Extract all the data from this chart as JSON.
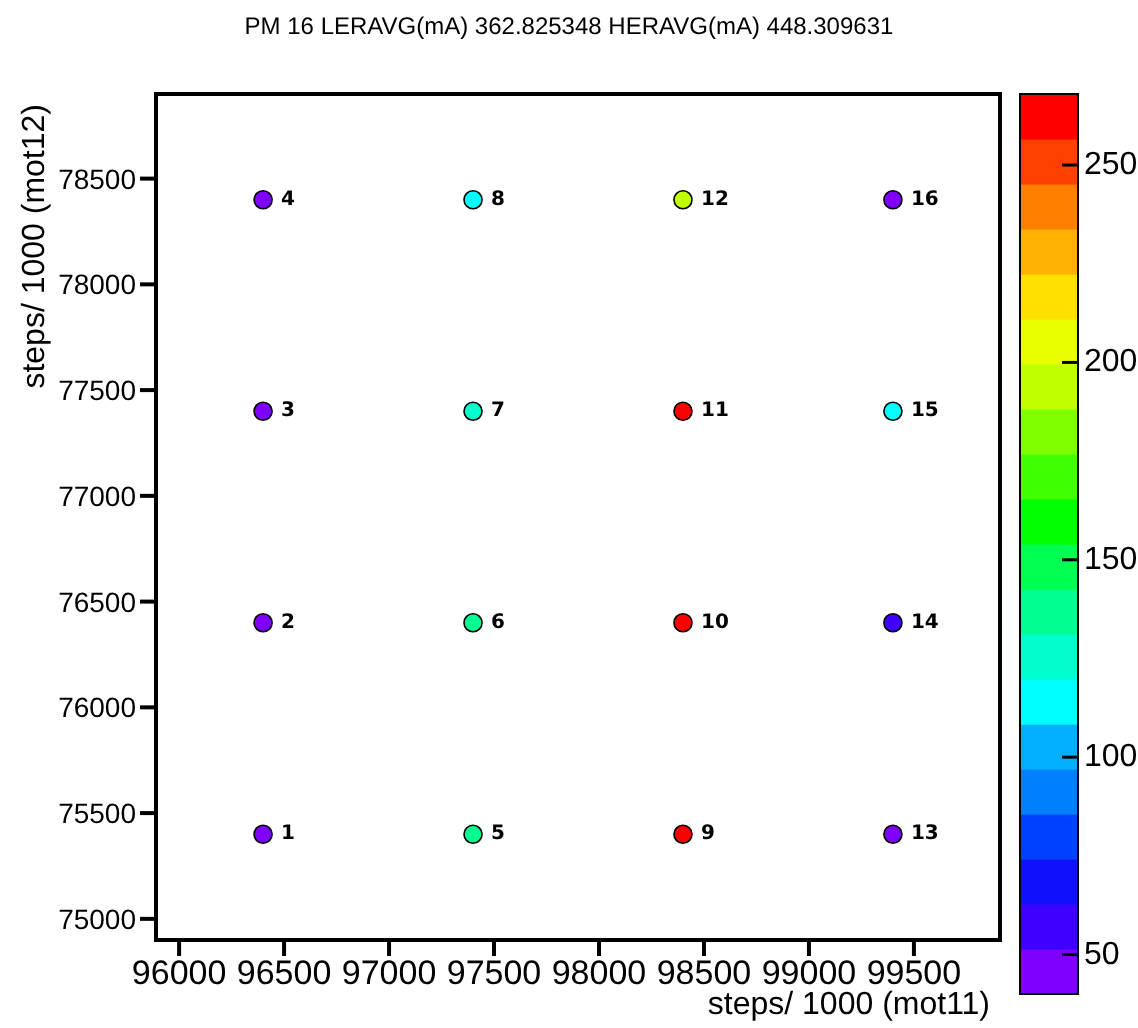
{
  "chart_data": {
    "type": "scatter",
    "title": "PM 16 LERAVG(mA) 362.825348 HERAVG(mA) 448.309631",
    "xlabel": "steps/ 1000 (mot11)",
    "ylabel": "steps/ 1000 (mot12)",
    "x": [
      96400,
      96400,
      96400,
      96400,
      97400,
      97400,
      97400,
      97400,
      98400,
      98400,
      98400,
      98400,
      99400,
      99400,
      99400,
      99400
    ],
    "values": [
      75400,
      76400,
      77400,
      78400,
      75400,
      76400,
      77400,
      78400,
      75400,
      76400,
      77400,
      78400,
      75400,
      76400,
      77400,
      78400
    ],
    "cvalues": [
      45,
      45,
      45,
      45,
      140,
      140,
      130,
      110,
      265,
      265,
      265,
      190,
      45,
      60,
      115,
      45
    ],
    "clim": [
      40,
      268
    ],
    "cticks": [
      50,
      100,
      150,
      200,
      250
    ],
    "xlim": [
      95890,
      99910
    ],
    "xticks": [
      96000,
      96500,
      97000,
      97500,
      98000,
      98500,
      99000,
      99500
    ],
    "ylim": [
      74900,
      78900
    ],
    "yticks": [
      75000,
      75500,
      76000,
      76500,
      77000,
      77500,
      78000,
      78500
    ],
    "marker": "circle",
    "annotations": [
      "1",
      "2",
      "3",
      "4",
      "5",
      "6",
      "7",
      "8",
      "9",
      "10",
      "11",
      "12",
      "13",
      "14",
      "15",
      "16"
    ]
  }
}
